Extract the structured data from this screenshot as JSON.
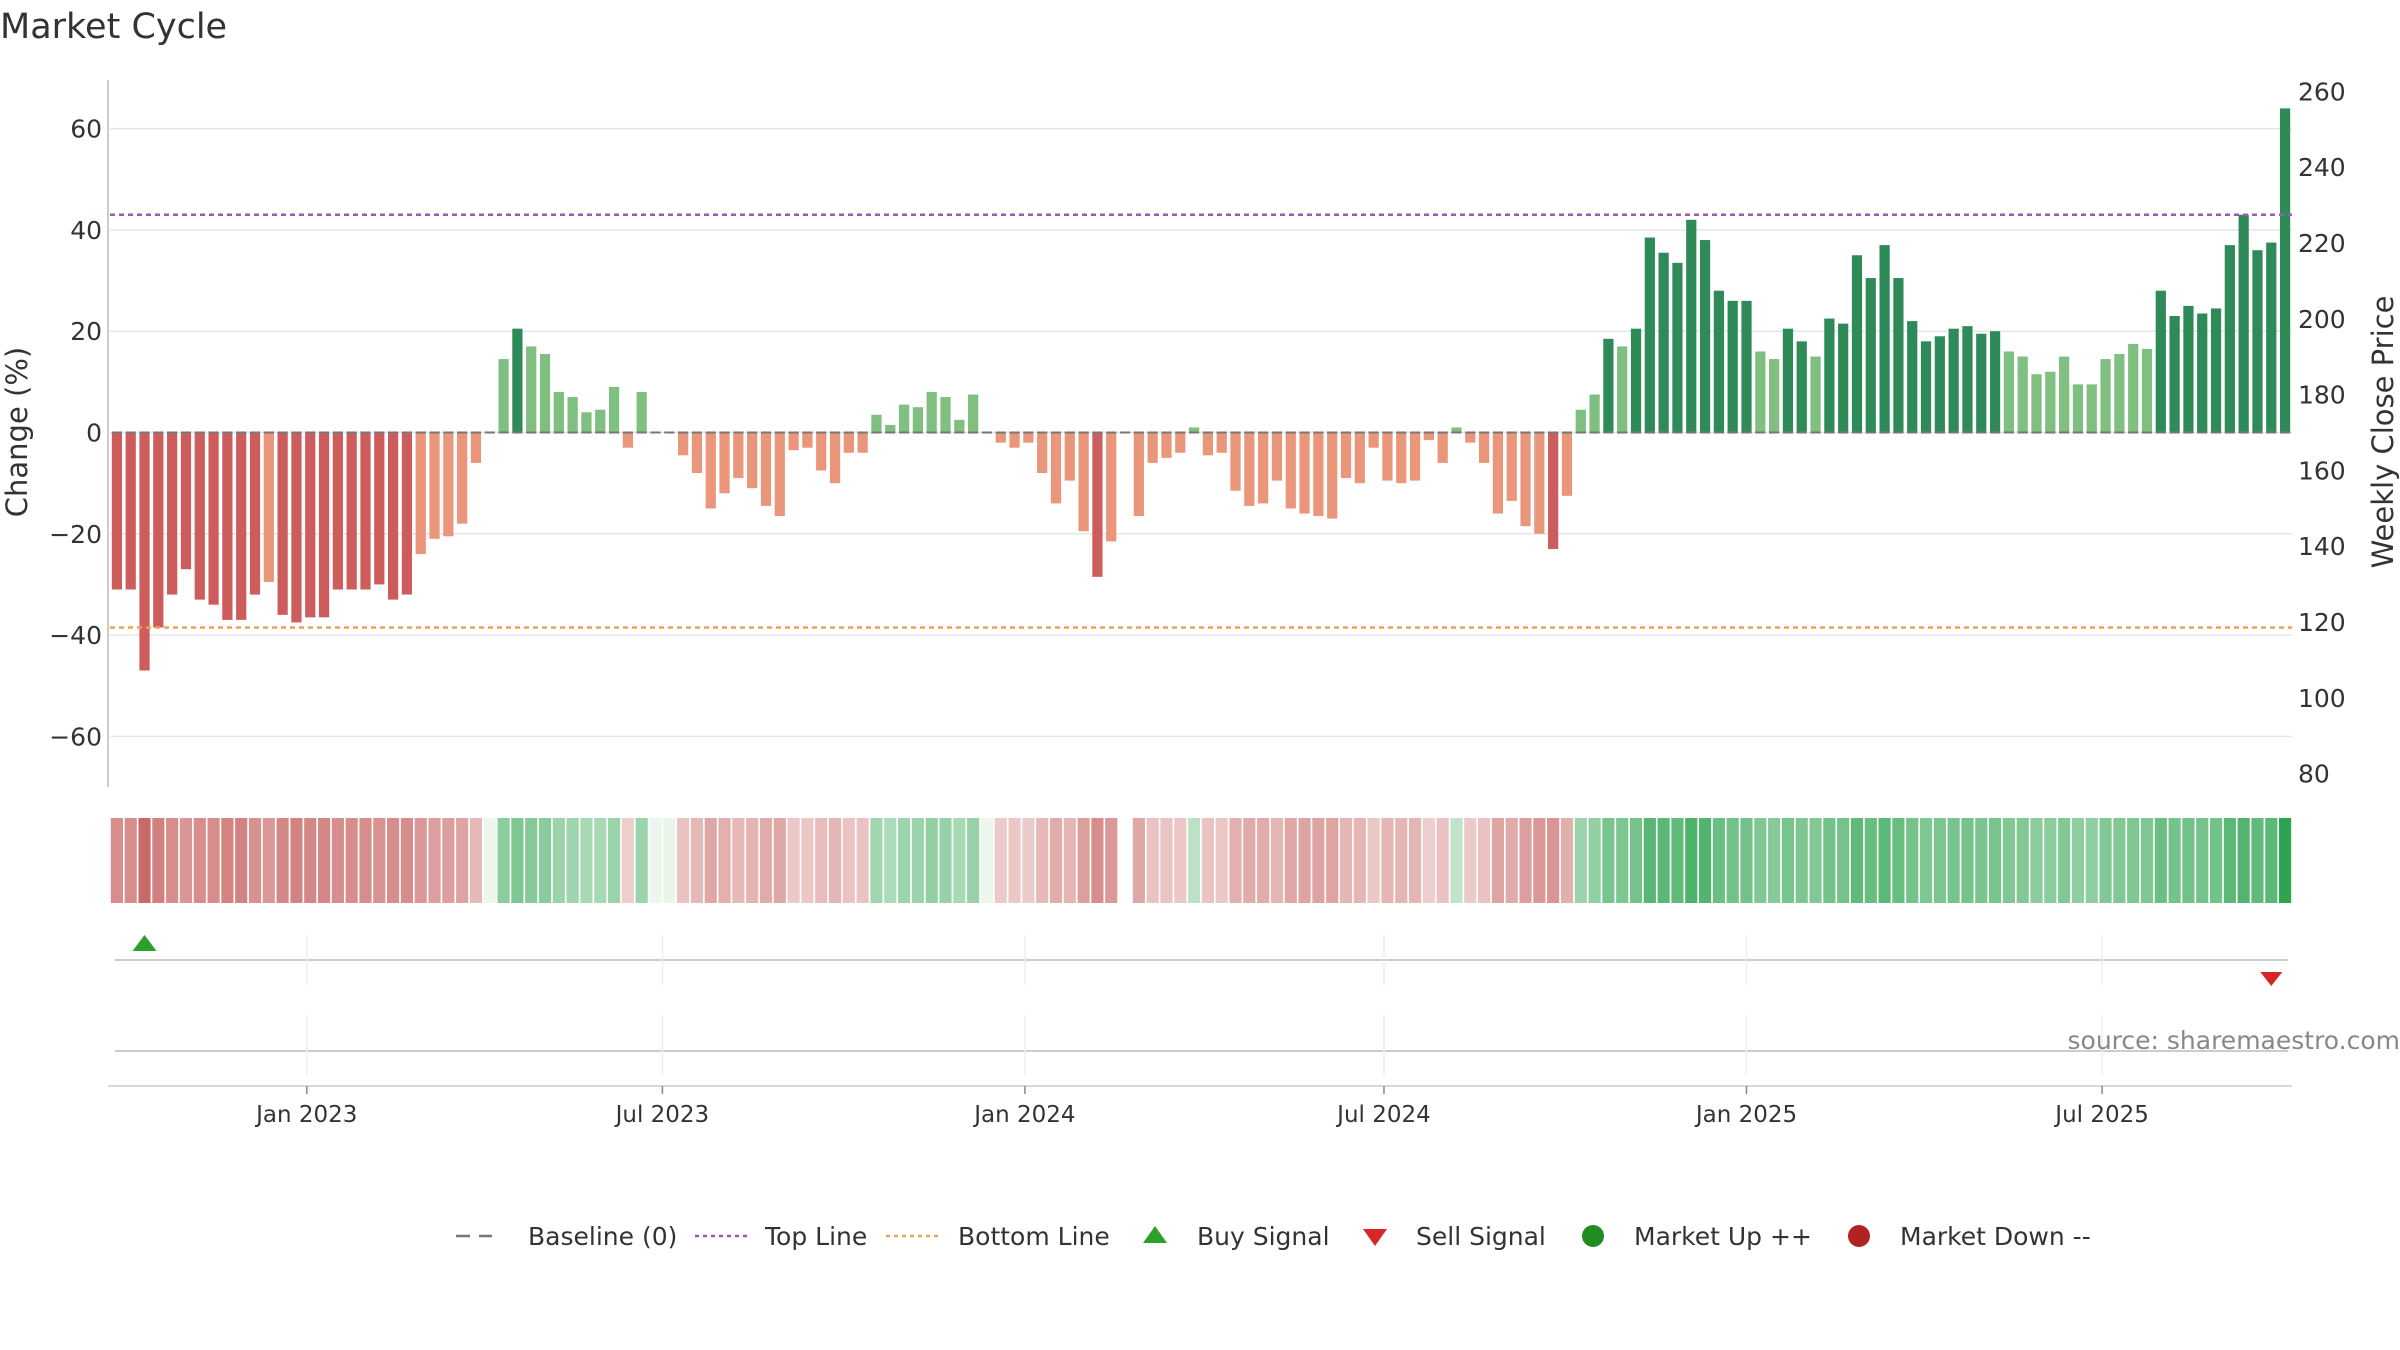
{
  "title": "Market Cycle",
  "source": "source: sharemaestro.com",
  "colors": {
    "up_strong": "#2e8b57",
    "up_light": "#7fbf7f",
    "down_strong": "#cd5c5c",
    "down_light": "#e9967a",
    "top_line": "#9b59b6",
    "bottom_line": "#f0a050",
    "buy": "#2ca02c",
    "sell": "#d62728",
    "market_up": "#228b22",
    "market_down": "#b22222",
    "grid": "#e6e6e6",
    "baseline": "#777777"
  },
  "chart_data": {
    "type": "bar",
    "title": "Market Cycle",
    "y_left": {
      "label": "Change (%)",
      "range": [
        -70,
        70
      ],
      "ticks": [
        -60,
        -40,
        -20,
        0,
        20,
        40,
        60
      ],
      "tick_labels": [
        "−60",
        "−40",
        "−20",
        "0",
        "20",
        "40",
        "60"
      ]
    },
    "y_right": {
      "label": "Weekly Close Price",
      "range": [
        76.5,
        263.5
      ],
      "ticks": [
        80,
        100,
        120,
        140,
        160,
        180,
        200,
        220,
        240,
        260
      ]
    },
    "x": {
      "labels": [
        "Jan 2023",
        "Jul 2023",
        "Jan 2024",
        "Jul 2024",
        "Jan 2025",
        "Jul 2025"
      ],
      "label_positions": [
        14.25,
        40.0,
        66.25,
        92.25,
        118.5,
        144.25
      ]
    },
    "top_line": 43,
    "bottom_line": -38.5,
    "buy_signals": [
      2.5
    ],
    "sell_signals": [
      156.5
    ],
    "values": [
      -31,
      -31,
      -47,
      -38.5,
      -32,
      -27,
      -33,
      -34,
      -37,
      -37,
      -32,
      -29.5,
      -36,
      -37.5,
      -36.5,
      -36.5,
      -31,
      -31,
      -31,
      -30,
      -33,
      -32,
      -24,
      -21,
      -20.5,
      -18,
      -6,
      0,
      14.5,
      20.5,
      17,
      15.5,
      8,
      7,
      4,
      4.5,
      9,
      -3,
      8,
      0,
      0,
      -4.5,
      -8,
      -15,
      -12,
      -9,
      -11,
      -14.5,
      -16.5,
      -3.5,
      -3,
      -7.5,
      -10,
      -4,
      -4,
      3.5,
      1.5,
      5.5,
      5,
      8,
      7,
      2.5,
      7.5,
      0,
      -2,
      -3,
      -2,
      -8,
      -14,
      -9.5,
      -19.5,
      -28.5,
      -21.5,
      0,
      -16.5,
      -6,
      -5,
      -4,
      1,
      -4.5,
      -4,
      -11.5,
      -14.5,
      -14,
      -9.5,
      -15,
      -16,
      -16.5,
      -17,
      -9,
      -10,
      -3,
      -9.5,
      -10,
      -9.5,
      -1.5,
      -6,
      1,
      -2,
      -6,
      -16,
      -13.5,
      -18.5,
      -20,
      -23,
      -12.5,
      4.5,
      7.5,
      18.5,
      17,
      20.5,
      38.5,
      35.5,
      33.5,
      42,
      38,
      28,
      26,
      26,
      16,
      14.5,
      20.5,
      18,
      15,
      22.5,
      21.5,
      35,
      30.5,
      37,
      30.5,
      22,
      18,
      19,
      20.5,
      21,
      19.5,
      20,
      16,
      15,
      11.5,
      12,
      15,
      9.5,
      9.5,
      14.5,
      15.5,
      17.5,
      16.5,
      28,
      23,
      25,
      23.5,
      24.5,
      37,
      43,
      36,
      37.5,
      64
    ],
    "strength_opacity": [
      0.55,
      0.55,
      0.75,
      0.62,
      0.55,
      0.5,
      0.55,
      0.55,
      0.6,
      0.6,
      0.52,
      0.48,
      0.58,
      0.6,
      0.58,
      0.58,
      0.55,
      0.55,
      0.55,
      0.52,
      0.55,
      0.55,
      0.48,
      0.45,
      0.45,
      0.42,
      0.3,
      0.2,
      0.45,
      0.52,
      0.48,
      0.46,
      0.38,
      0.36,
      0.32,
      0.32,
      0.38,
      0.18,
      0.38,
      0.2,
      0.22,
      0.25,
      0.3,
      0.4,
      0.35,
      0.3,
      0.33,
      0.38,
      0.4,
      0.22,
      0.22,
      0.28,
      0.32,
      0.24,
      0.24,
      0.35,
      0.3,
      0.38,
      0.38,
      0.42,
      0.4,
      0.32,
      0.4,
      0.2,
      0.2,
      0.22,
      0.2,
      0.3,
      0.38,
      0.32,
      0.45,
      0.55,
      0.48,
      0.0,
      0.4,
      0.25,
      0.24,
      0.22,
      0.22,
      0.24,
      0.22,
      0.35,
      0.38,
      0.38,
      0.32,
      0.4,
      0.42,
      0.42,
      0.42,
      0.32,
      0.32,
      0.22,
      0.32,
      0.32,
      0.32,
      0.18,
      0.25,
      0.2,
      0.2,
      0.25,
      0.42,
      0.38,
      0.45,
      0.48,
      0.5,
      0.36,
      0.38,
      0.42,
      0.55,
      0.52,
      0.56,
      0.7,
      0.68,
      0.66,
      0.75,
      0.72,
      0.6,
      0.58,
      0.58,
      0.5,
      0.48,
      0.55,
      0.52,
      0.5,
      0.57,
      0.56,
      0.66,
      0.62,
      0.68,
      0.62,
      0.56,
      0.52,
      0.53,
      0.55,
      0.56,
      0.54,
      0.55,
      0.5,
      0.5,
      0.46,
      0.46,
      0.5,
      0.44,
      0.44,
      0.5,
      0.5,
      0.52,
      0.52,
      0.6,
      0.56,
      0.58,
      0.56,
      0.57,
      0.68,
      0.72,
      0.66,
      0.68,
      0.9
    ],
    "legend": [
      {
        "label": "Baseline (0)",
        "symbol": "dash",
        "color": "#777777"
      },
      {
        "label": "Top Line",
        "symbol": "dotted",
        "color": "#9b59b6"
      },
      {
        "label": "Bottom Line",
        "symbol": "dotted",
        "color": "#f0a050"
      },
      {
        "label": "Buy Signal",
        "symbol": "triangle-up",
        "color": "#2ca02c"
      },
      {
        "label": "Sell Signal",
        "symbol": "triangle-down",
        "color": "#d62728"
      },
      {
        "label": "Market Up ++",
        "symbol": "circle",
        "color": "#228b22"
      },
      {
        "label": "Market Down --",
        "symbol": "circle",
        "color": "#b22222"
      }
    ],
    "legend_position": "bottom-center",
    "grid": true
  }
}
